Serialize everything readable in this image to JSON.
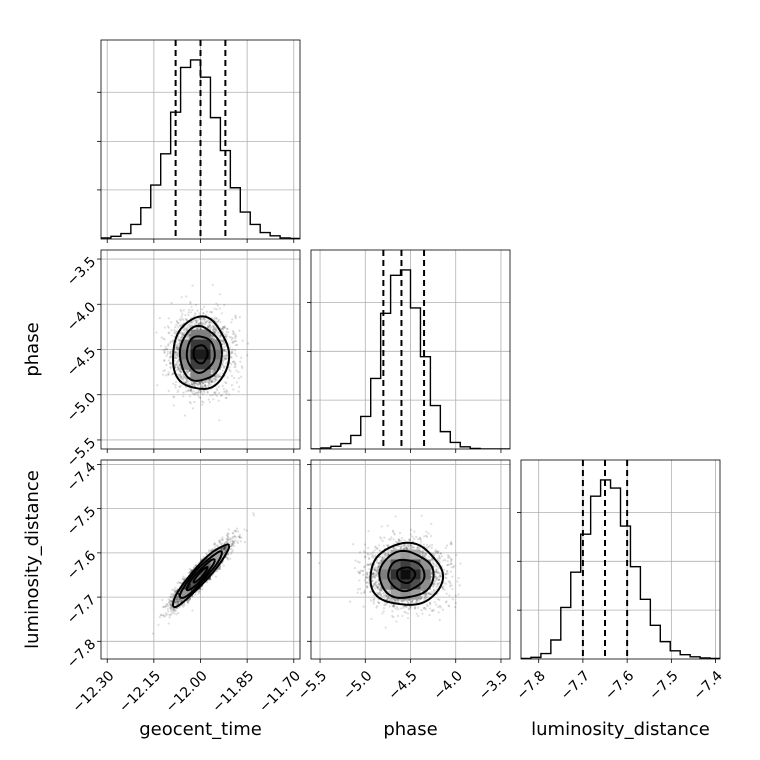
{
  "chart_data": {
    "type": "corner",
    "parameters": [
      {
        "name": "geocent_time",
        "label": "geocent_time",
        "range": [
          -12.32,
          -11.68
        ],
        "ticks": [
          -12.3,
          -12.15,
          -12.0,
          -11.85,
          -11.7
        ],
        "tick_labels": [
          "−12.30",
          "−12.15",
          "−12.00",
          "−11.85",
          "−11.70"
        ],
        "quantiles": [
          -12.08,
          -12.0,
          -11.92
        ],
        "mean": -12.0,
        "sd": 0.045,
        "histogram": {
          "start": -12.32,
          "bin_width": 0.032,
          "heights": [
            2,
            5,
            10,
            27,
            58,
            100,
            158,
            235,
            318,
            332,
            300,
            225,
            164,
            95,
            50,
            27,
            12,
            6,
            2,
            1
          ]
        }
      },
      {
        "name": "phase",
        "label": "phase",
        "range": [
          -5.6,
          -3.4
        ],
        "ticks": [
          -5.5,
          -5.0,
          -4.5,
          -4.0,
          -3.5
        ],
        "tick_labels": [
          "−5.5",
          "−5.0",
          "−4.5",
          "−4.0",
          "−3.5"
        ],
        "quantiles": [
          -4.8,
          -4.6,
          -4.35
        ],
        "mean": -4.55,
        "sd": 0.2,
        "histogram": {
          "start": -5.6,
          "bin_width": 0.11,
          "heights": [
            0,
            2,
            5,
            10,
            25,
            60,
            130,
            250,
            320,
            330,
            260,
            170,
            80,
            32,
            12,
            4,
            1,
            0,
            0,
            0
          ]
        }
      },
      {
        "name": "luminosity_distance",
        "label": "luminosity_distance",
        "range": [
          -7.84,
          -7.39
        ],
        "ticks": [
          -7.8,
          -7.7,
          -7.6,
          -7.5,
          -7.4
        ],
        "tick_labels": [
          "−7.8",
          "−7.7",
          "−7.6",
          "−7.5",
          "−7.4"
        ],
        "quantiles": [
          -7.7,
          -7.65,
          -7.6
        ],
        "mean": -7.65,
        "sd": 0.035,
        "histogram": {
          "start": -7.84,
          "bin_width": 0.0225,
          "heights": [
            1,
            3,
            10,
            35,
            95,
            160,
            230,
            300,
            330,
            315,
            245,
            170,
            110,
            62,
            32,
            15,
            8,
            4,
            2,
            1
          ]
        }
      }
    ],
    "pairs": [
      {
        "x": 0,
        "y": 1,
        "correlation": 0.0
      },
      {
        "x": 0,
        "y": 2,
        "correlation": 0.93
      },
      {
        "x": 1,
        "y": 2,
        "correlation": 0.0
      }
    ],
    "contour_sigmas": [
      0.5,
      1.0,
      1.5,
      2.0
    ],
    "density_grid": true,
    "grid": true,
    "legend": "none"
  }
}
